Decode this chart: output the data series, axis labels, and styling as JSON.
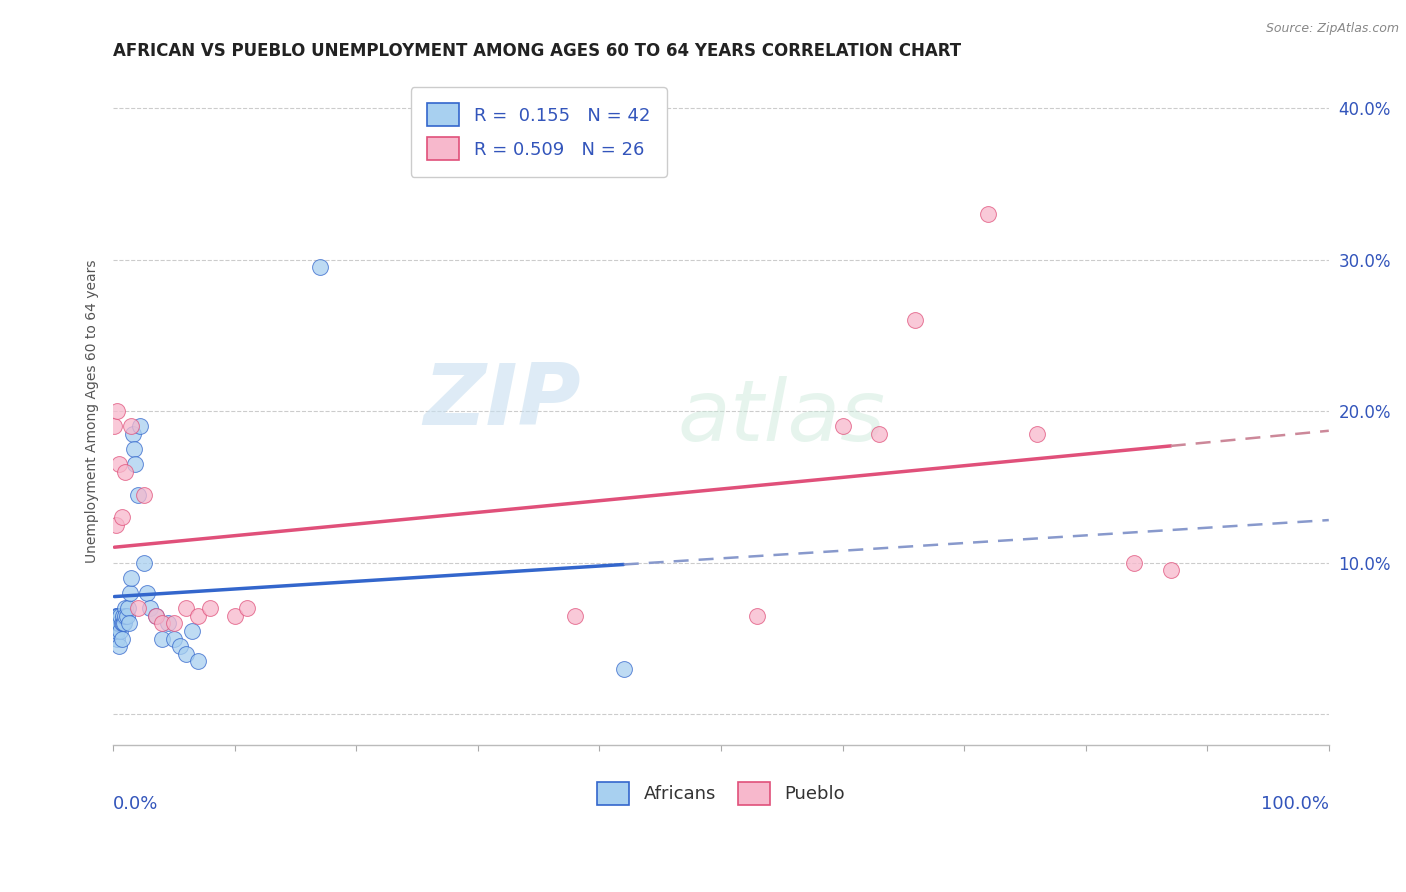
{
  "title": "AFRICAN VS PUEBLO UNEMPLOYMENT AMONG AGES 60 TO 64 YEARS CORRELATION CHART",
  "source": "Source: ZipAtlas.com",
  "ylabel": "Unemployment Among Ages 60 to 64 years",
  "africans_R": 0.155,
  "africans_N": 42,
  "pueblo_R": 0.509,
  "pueblo_N": 26,
  "africans_color": "#a8d0f0",
  "pueblo_color": "#f7b8cc",
  "africans_line_color": "#3366cc",
  "pueblo_line_color": "#e0507a",
  "africans_x": [
    0.001,
    0.002,
    0.002,
    0.003,
    0.003,
    0.003,
    0.004,
    0.004,
    0.005,
    0.005,
    0.006,
    0.006,
    0.007,
    0.007,
    0.008,
    0.008,
    0.009,
    0.01,
    0.01,
    0.011,
    0.012,
    0.013,
    0.014,
    0.015,
    0.016,
    0.017,
    0.018,
    0.02,
    0.022,
    0.025,
    0.028,
    0.03,
    0.035,
    0.04,
    0.045,
    0.05,
    0.055,
    0.06,
    0.065,
    0.07,
    0.17,
    0.42
  ],
  "africans_y": [
    0.055,
    0.06,
    0.065,
    0.05,
    0.055,
    0.065,
    0.06,
    0.065,
    0.045,
    0.06,
    0.055,
    0.065,
    0.05,
    0.06,
    0.06,
    0.065,
    0.06,
    0.07,
    0.065,
    0.065,
    0.07,
    0.06,
    0.08,
    0.09,
    0.185,
    0.175,
    0.165,
    0.145,
    0.19,
    0.1,
    0.08,
    0.07,
    0.065,
    0.05,
    0.06,
    0.05,
    0.045,
    0.04,
    0.055,
    0.035,
    0.295,
    0.03
  ],
  "pueblo_x": [
    0.001,
    0.002,
    0.003,
    0.005,
    0.007,
    0.01,
    0.015,
    0.02,
    0.025,
    0.035,
    0.04,
    0.05,
    0.06,
    0.07,
    0.08,
    0.1,
    0.11,
    0.38,
    0.53,
    0.6,
    0.63,
    0.66,
    0.72,
    0.76,
    0.84,
    0.87
  ],
  "pueblo_y": [
    0.19,
    0.125,
    0.2,
    0.165,
    0.13,
    0.16,
    0.19,
    0.07,
    0.145,
    0.065,
    0.06,
    0.06,
    0.07,
    0.065,
    0.07,
    0.065,
    0.07,
    0.065,
    0.065,
    0.19,
    0.185,
    0.26,
    0.33,
    0.185,
    0.1,
    0.095
  ],
  "watermark_zip": "ZIP",
  "watermark_atlas": "atlas",
  "background_color": "#ffffff",
  "grid_color": "#cccccc",
  "title_fontsize": 12,
  "axis_label_fontsize": 10,
  "legend_fontsize": 13,
  "marker_size": 130,
  "xlim": [
    0.0,
    1.0
  ],
  "ylim": [
    -0.02,
    0.42
  ],
  "yticks": [
    0.0,
    0.1,
    0.2,
    0.3,
    0.4
  ],
  "ytick_labels": [
    "",
    "10.0%",
    "20.0%",
    "30.0%",
    "40.0%"
  ]
}
